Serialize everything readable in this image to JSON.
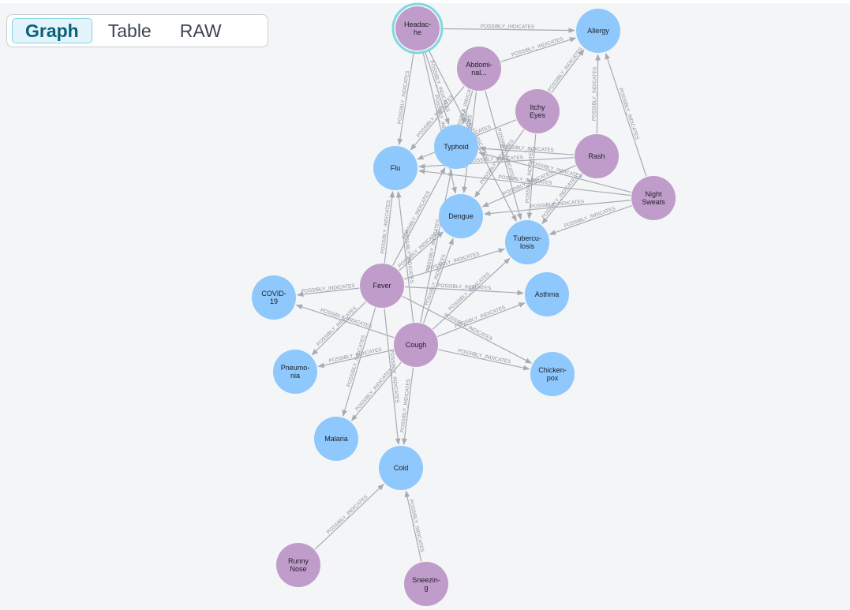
{
  "tabs": [
    {
      "label": "Graph",
      "active": true
    },
    {
      "label": "Table",
      "active": false
    },
    {
      "label": "RAW",
      "active": false
    }
  ],
  "colors": {
    "symptom": "#c09ccb",
    "disease": "#8fc8fc",
    "selected_ring": "#7fd8e0",
    "edge": "#a6abb4",
    "background": "#f4f5f6"
  },
  "graph": {
    "relationship_label": "POSSIBLY_INDICATES",
    "nodes": [
      {
        "id": "headache",
        "label": [
          "Headac-",
          "he"
        ],
        "kind": "symptom",
        "selected": true
      },
      {
        "id": "abdominal",
        "label": [
          "Abdomi-",
          "nal..."
        ],
        "kind": "symptom"
      },
      {
        "id": "itchy",
        "label": [
          "Itchy",
          "Eyes"
        ],
        "kind": "symptom"
      },
      {
        "id": "rash",
        "label": [
          "Rash"
        ],
        "kind": "symptom"
      },
      {
        "id": "nightsweats",
        "label": [
          "Night",
          "Sweats"
        ],
        "kind": "symptom"
      },
      {
        "id": "fever",
        "label": [
          "Fever"
        ],
        "kind": "symptom"
      },
      {
        "id": "cough",
        "label": [
          "Cough"
        ],
        "kind": "symptom"
      },
      {
        "id": "runnynose",
        "label": [
          "Runny",
          "Nose"
        ],
        "kind": "symptom"
      },
      {
        "id": "sneezing",
        "label": [
          "Sneezin-",
          "g"
        ],
        "kind": "symptom"
      },
      {
        "id": "allergy",
        "label": [
          "Allergy"
        ],
        "kind": "disease"
      },
      {
        "id": "typhoid",
        "label": [
          "Typhoid"
        ],
        "kind": "disease"
      },
      {
        "id": "flu",
        "label": [
          "Flu"
        ],
        "kind": "disease"
      },
      {
        "id": "dengue",
        "label": [
          "Dengue"
        ],
        "kind": "disease"
      },
      {
        "id": "tuberculosis",
        "label": [
          "Tubercu-",
          "losis"
        ],
        "kind": "disease"
      },
      {
        "id": "covid",
        "label": [
          "COVID-",
          "19"
        ],
        "kind": "disease"
      },
      {
        "id": "asthma",
        "label": [
          "Asthma"
        ],
        "kind": "disease"
      },
      {
        "id": "pneumonia",
        "label": [
          "Pneumo-",
          "nia"
        ],
        "kind": "disease"
      },
      {
        "id": "chickenpox",
        "label": [
          "Chicken-",
          "pox"
        ],
        "kind": "disease"
      },
      {
        "id": "malaria",
        "label": [
          "Malaria"
        ],
        "kind": "disease"
      },
      {
        "id": "cold",
        "label": [
          "Cold"
        ],
        "kind": "disease"
      }
    ],
    "edges": [
      [
        "headache",
        "allergy"
      ],
      [
        "headache",
        "flu"
      ],
      [
        "headache",
        "typhoid"
      ],
      [
        "headache",
        "dengue"
      ],
      [
        "headache",
        "tuberculosis"
      ],
      [
        "abdominal",
        "allergy"
      ],
      [
        "abdominal",
        "typhoid"
      ],
      [
        "abdominal",
        "flu"
      ],
      [
        "abdominal",
        "dengue"
      ],
      [
        "abdominal",
        "tuberculosis"
      ],
      [
        "itchy",
        "allergy"
      ],
      [
        "itchy",
        "flu"
      ],
      [
        "itchy",
        "dengue"
      ],
      [
        "itchy",
        "tuberculosis"
      ],
      [
        "rash",
        "allergy"
      ],
      [
        "rash",
        "typhoid"
      ],
      [
        "rash",
        "flu"
      ],
      [
        "rash",
        "dengue"
      ],
      [
        "rash",
        "tuberculosis"
      ],
      [
        "nightsweats",
        "allergy"
      ],
      [
        "nightsweats",
        "flu"
      ],
      [
        "nightsweats",
        "typhoid"
      ],
      [
        "nightsweats",
        "dengue"
      ],
      [
        "nightsweats",
        "tuberculosis"
      ],
      [
        "fever",
        "flu"
      ],
      [
        "fever",
        "typhoid"
      ],
      [
        "fever",
        "dengue"
      ],
      [
        "fever",
        "tuberculosis"
      ],
      [
        "fever",
        "covid"
      ],
      [
        "fever",
        "asthma"
      ],
      [
        "fever",
        "pneumonia"
      ],
      [
        "fever",
        "chickenpox"
      ],
      [
        "fever",
        "malaria"
      ],
      [
        "fever",
        "cold"
      ],
      [
        "cough",
        "flu"
      ],
      [
        "cough",
        "typhoid"
      ],
      [
        "cough",
        "dengue"
      ],
      [
        "cough",
        "tuberculosis"
      ],
      [
        "cough",
        "covid"
      ],
      [
        "cough",
        "asthma"
      ],
      [
        "cough",
        "pneumonia"
      ],
      [
        "cough",
        "chickenpox"
      ],
      [
        "cough",
        "malaria"
      ],
      [
        "cough",
        "cold"
      ],
      [
        "runnynose",
        "cold"
      ],
      [
        "sneezing",
        "cold"
      ]
    ]
  }
}
